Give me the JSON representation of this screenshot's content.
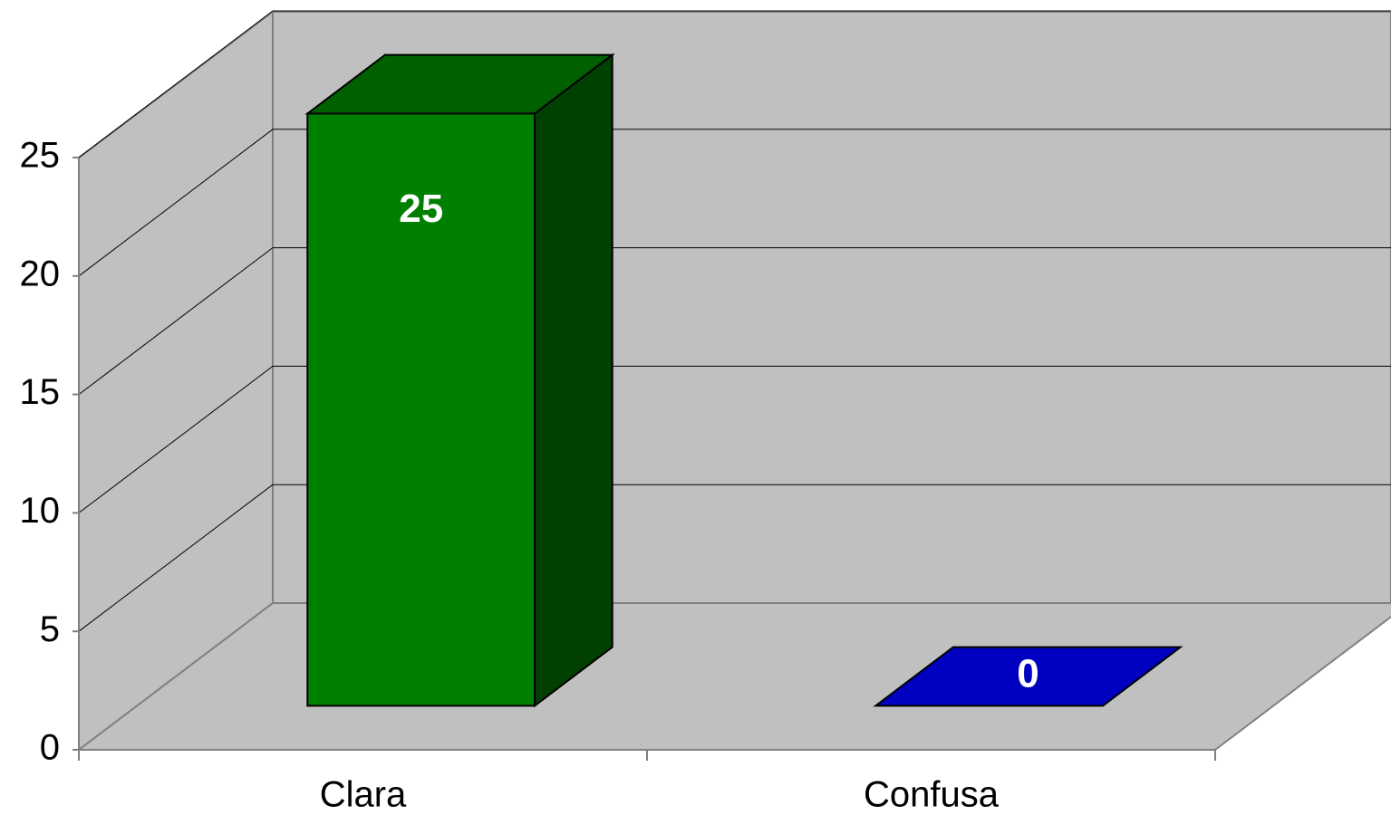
{
  "chart_data": {
    "type": "bar3d",
    "categories": [
      "Clara",
      "Confusa"
    ],
    "values": [
      25,
      0
    ],
    "colors": [
      "#008000",
      "#0000c0"
    ],
    "ylim": [
      0,
      25
    ],
    "yticks": [
      0,
      5,
      10,
      15,
      20,
      25
    ],
    "grid": true
  }
}
